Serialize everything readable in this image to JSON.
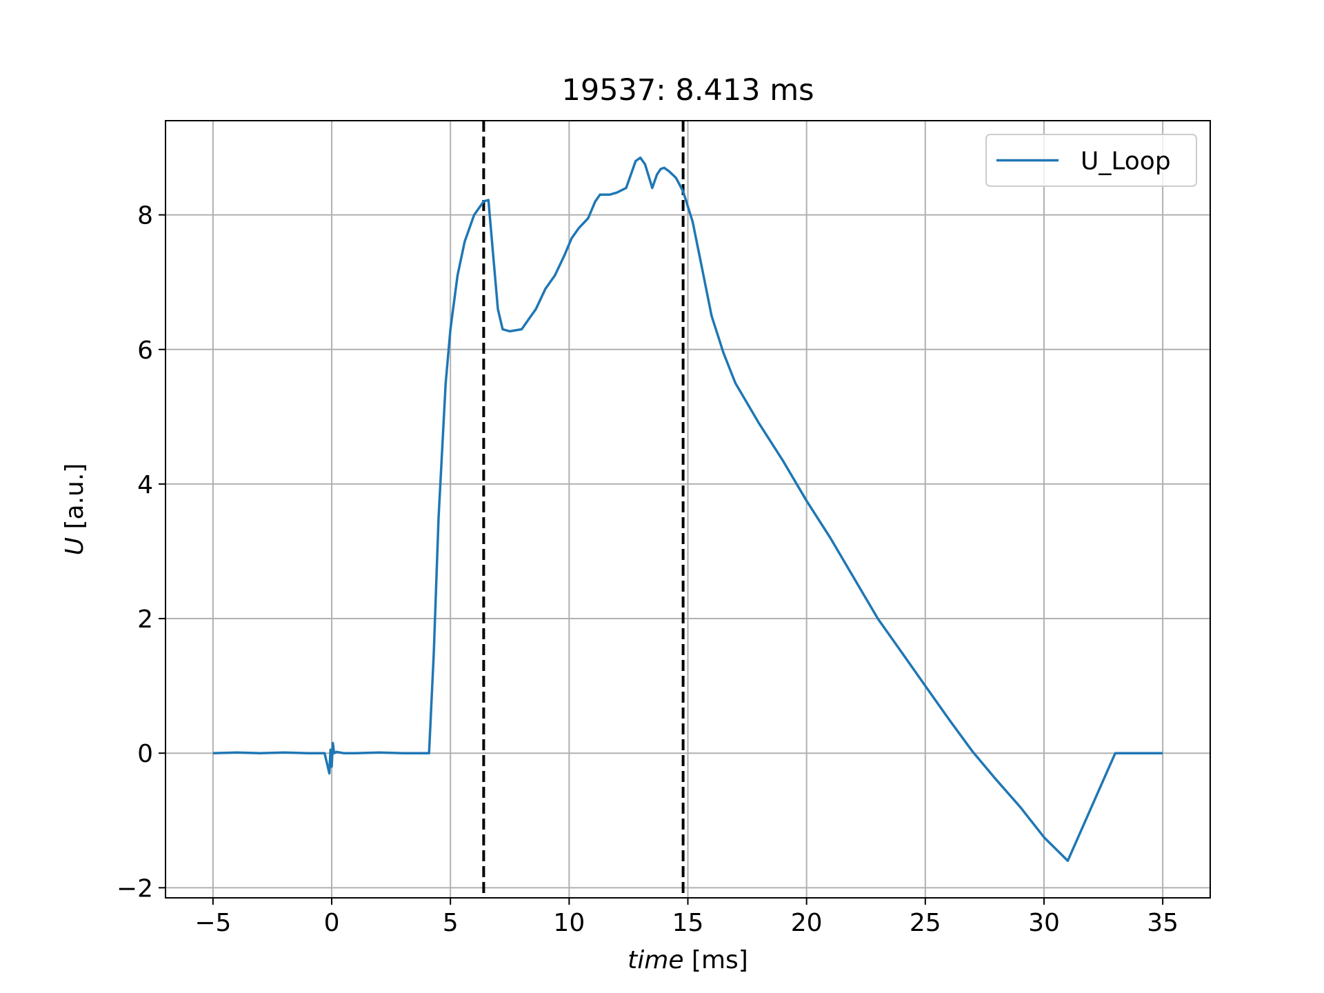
{
  "chart_data": {
    "type": "line",
    "title": "19537: 8.413 ms",
    "xlabel_italic": "time",
    "xlabel_unit": " [ms]",
    "ylabel_italic": "U",
    "ylabel_unit": " [a.u.]",
    "xlim": [
      -7,
      37
    ],
    "ylim": [
      -2.15,
      9.4
    ],
    "xticks": [
      -5,
      0,
      5,
      10,
      15,
      20,
      25,
      30,
      35
    ],
    "xtick_labels": [
      "−5",
      "0",
      "5",
      "10",
      "15",
      "20",
      "25",
      "30",
      "35"
    ],
    "yticks": [
      -2,
      0,
      2,
      4,
      6,
      8
    ],
    "ytick_labels": [
      "−2",
      "0",
      "2",
      "4",
      "6",
      "8"
    ],
    "grid": true,
    "legend_position": "top-right",
    "vertical_lines": [
      6.4,
      14.8
    ],
    "vertical_line_style": "dashed",
    "series": [
      {
        "name": "U_Loop",
        "color": "#1f77b4",
        "x": [
          -5,
          -4,
          -3,
          -2,
          -1,
          -0.3,
          -0.1,
          -0.05,
          0,
          0.05,
          0.1,
          0.2,
          0.5,
          1,
          2,
          3,
          4.1,
          4.3,
          4.5,
          4.8,
          5.0,
          5.3,
          5.6,
          6.0,
          6.4,
          6.6,
          6.8,
          7.0,
          7.2,
          7.5,
          8.0,
          8.3,
          8.6,
          9.0,
          9.4,
          9.8,
          10.1,
          10.4,
          10.8,
          11.1,
          11.3,
          11.7,
          12.0,
          12.4,
          12.8,
          13.0,
          13.2,
          13.5,
          13.7,
          13.85,
          14.0,
          14.2,
          14.5,
          14.8,
          15.2,
          15.6,
          16.0,
          16.5,
          17.0,
          18.0,
          19.0,
          20.0,
          21.0,
          22.0,
          23.0,
          24.0,
          25.0,
          26.0,
          27.0,
          28.0,
          29.0,
          30.0,
          31.0,
          32.0,
          33.0,
          34.0,
          34.9,
          35.0
        ],
        "y": [
          0,
          0.01,
          0.0,
          0.01,
          0.0,
          0.0,
          -0.3,
          0.05,
          -0.2,
          0.15,
          0.0,
          0.02,
          0.0,
          0.0,
          0.01,
          0.0,
          0.0,
          1.5,
          3.5,
          5.5,
          6.3,
          7.1,
          7.6,
          8.0,
          8.2,
          8.22,
          7.4,
          6.6,
          6.3,
          6.27,
          6.3,
          6.45,
          6.6,
          6.9,
          7.1,
          7.4,
          7.65,
          7.8,
          7.95,
          8.2,
          8.3,
          8.3,
          8.33,
          8.4,
          8.8,
          8.85,
          8.75,
          8.4,
          8.6,
          8.68,
          8.7,
          8.65,
          8.55,
          8.35,
          7.9,
          7.2,
          6.5,
          5.95,
          5.5,
          4.9,
          4.35,
          3.75,
          3.2,
          2.6,
          2.0,
          1.5,
          1.0,
          0.5,
          0.02,
          -0.4,
          -0.8,
          -1.25,
          -1.6,
          -0.8,
          0.0,
          0.0,
          0.0,
          0.0
        ]
      }
    ]
  }
}
